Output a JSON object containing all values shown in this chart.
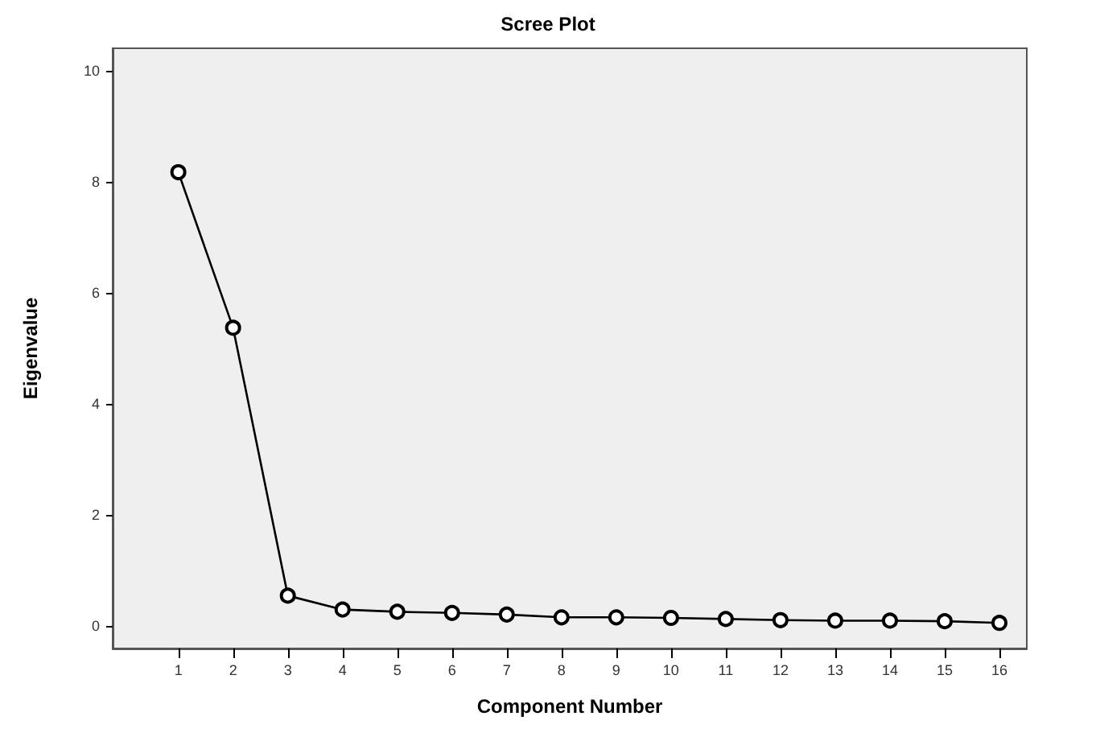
{
  "chart_data": {
    "type": "line",
    "title": "Scree Plot",
    "xlabel": "Component Number",
    "ylabel": "Eigenvalue",
    "x": [
      1,
      2,
      3,
      4,
      5,
      6,
      7,
      8,
      9,
      10,
      11,
      12,
      13,
      14,
      15,
      16
    ],
    "series": [
      {
        "color": "#000000",
        "values": [
          8.17,
          5.37,
          0.55,
          0.3,
          0.26,
          0.24,
          0.21,
          0.16,
          0.16,
          0.15,
          0.13,
          0.11,
          0.1,
          0.1,
          0.09,
          0.06
        ]
      }
    ],
    "xlim": [
      -0.2,
      16.5
    ],
    "xticks": [
      1,
      2,
      3,
      4,
      5,
      6,
      7,
      8,
      9,
      10,
      11,
      12,
      13,
      14,
      15,
      16
    ],
    "ylim": [
      -0.4,
      10.4
    ],
    "yticks": [
      0,
      2,
      4,
      6,
      8,
      10
    ],
    "grid": false,
    "marker": "circle",
    "line_style": "solid"
  }
}
